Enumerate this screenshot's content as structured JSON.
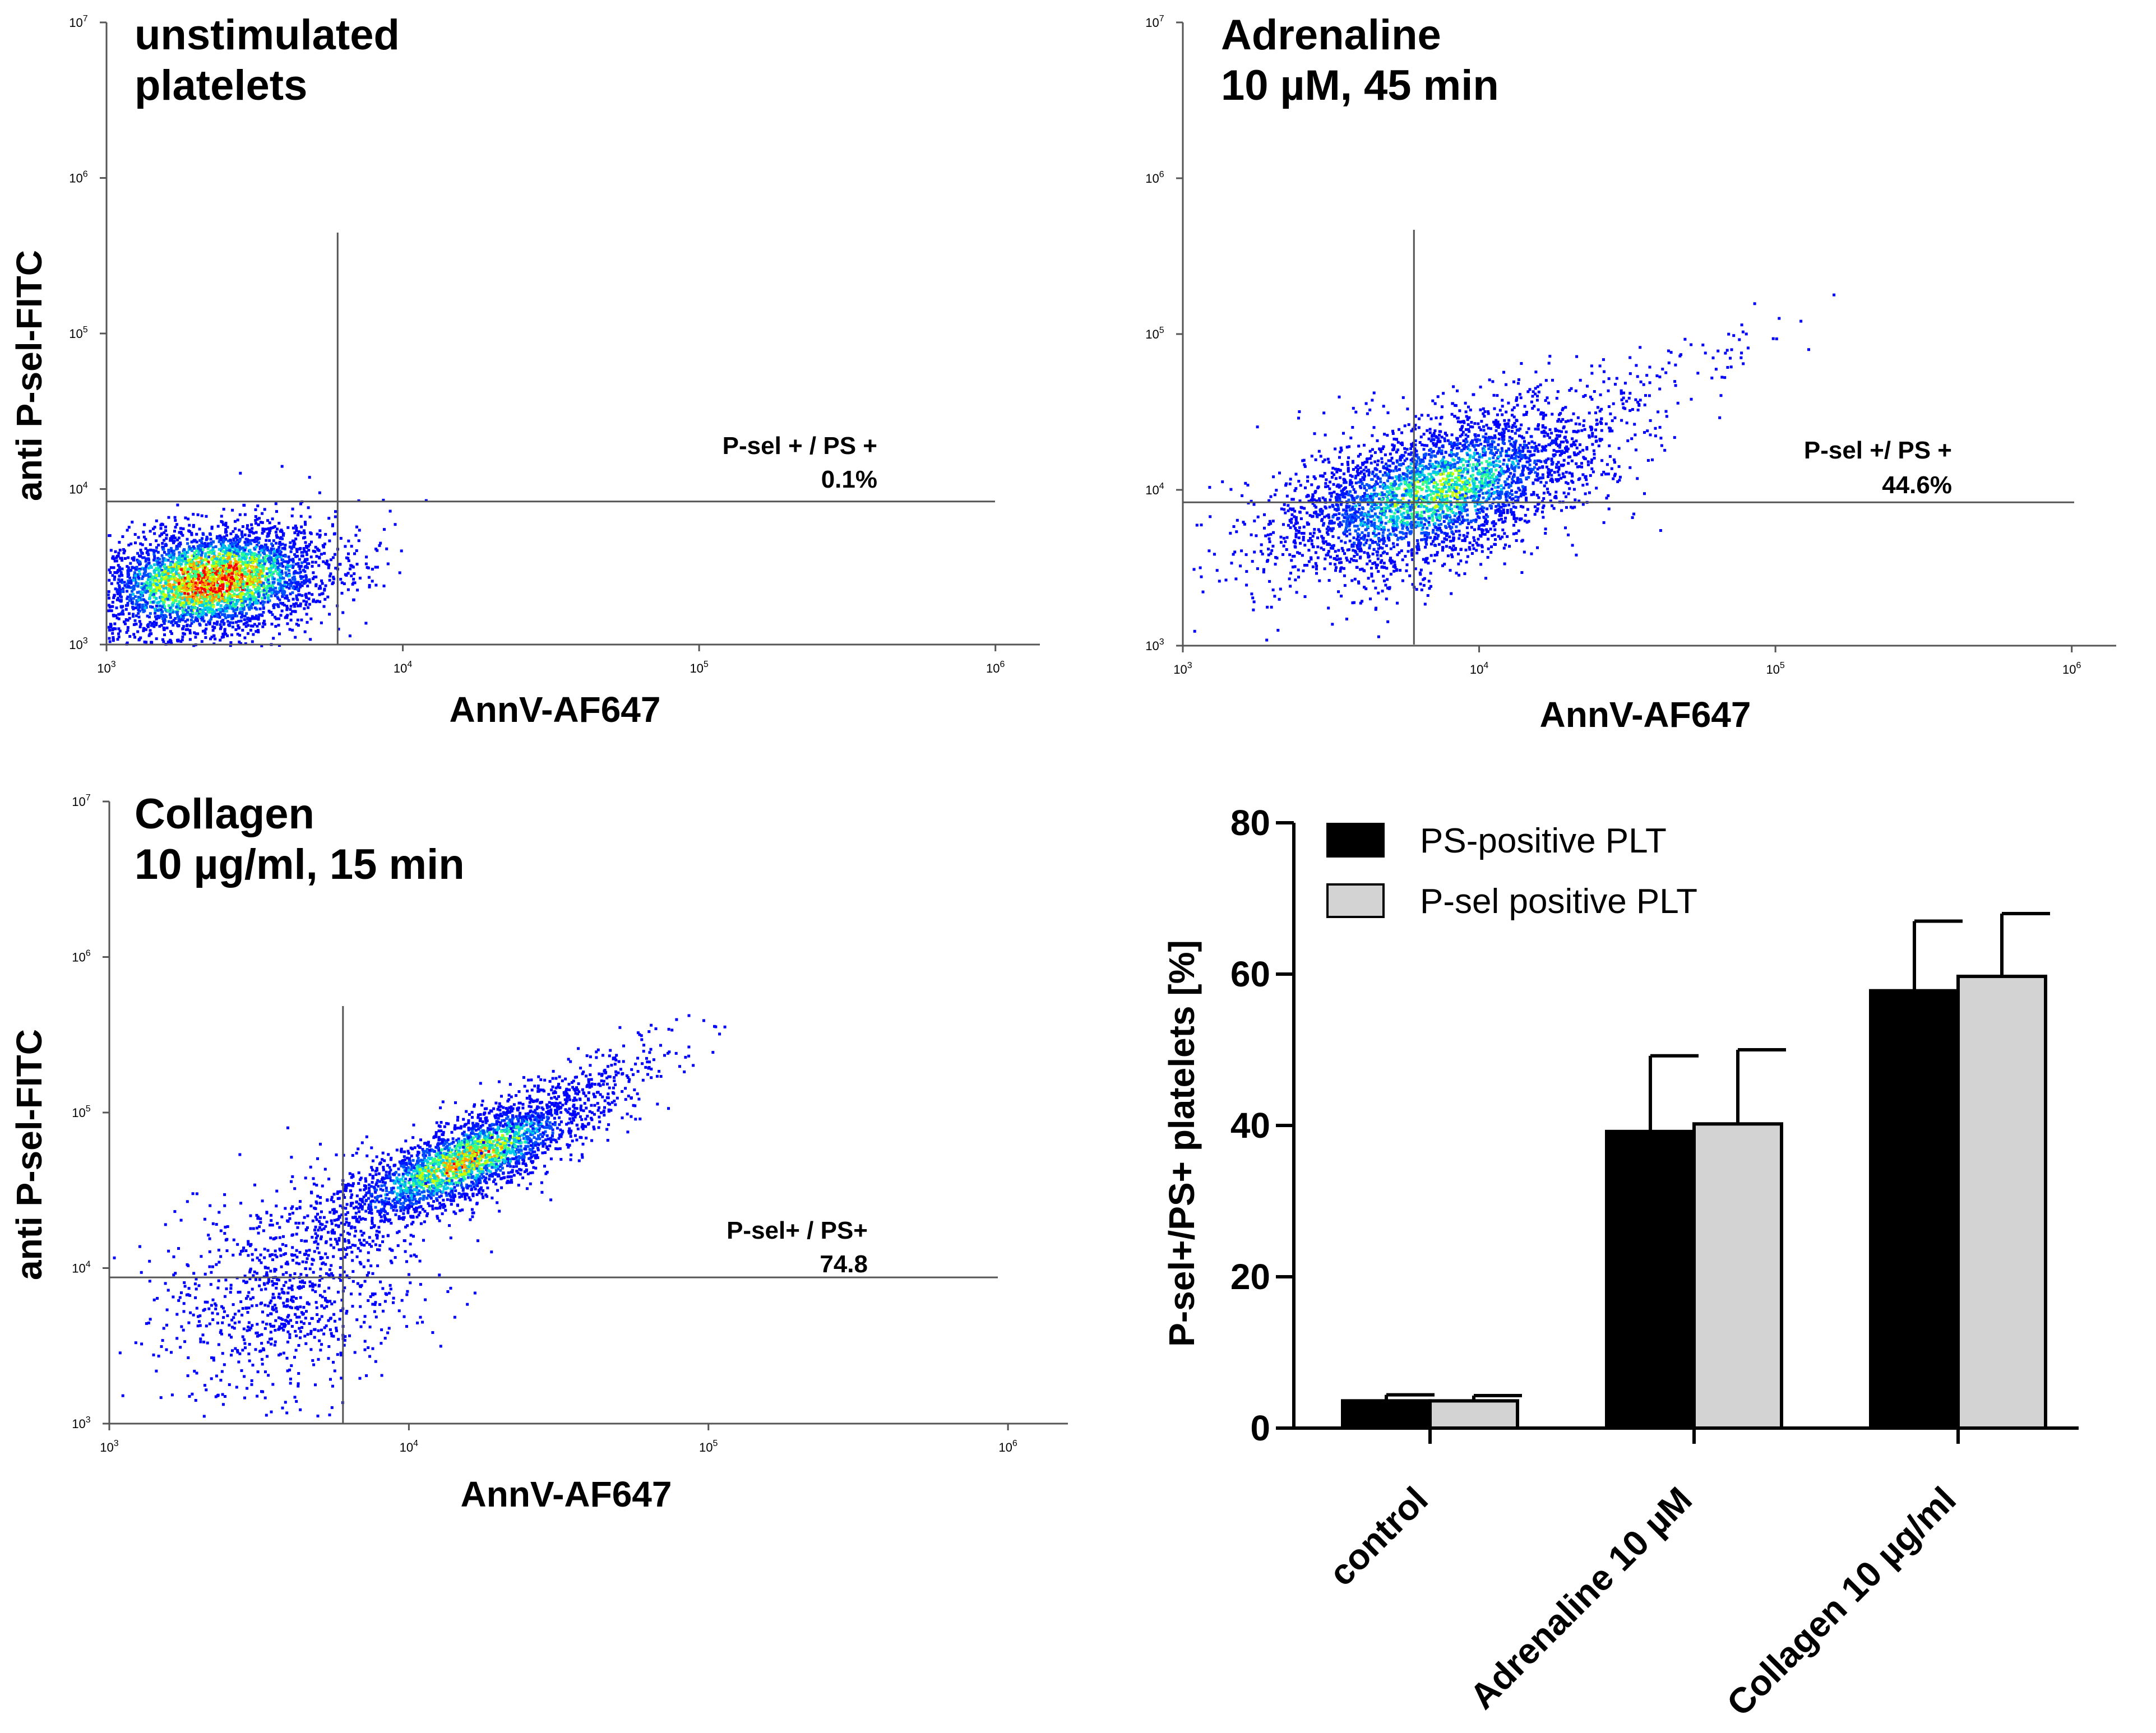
{
  "chart_data": [
    {
      "type": "scatter",
      "title": [
        "unstimulated",
        "platelets"
      ],
      "xlabel": "AnnV-AF647",
      "ylabel": "anti P-sel-FITC",
      "x_ticks": [
        {
          "base": "10",
          "exp": "3"
        },
        {
          "base": "10",
          "exp": "4"
        },
        {
          "base": "10",
          "exp": "5"
        },
        {
          "base": "10",
          "exp": "6"
        }
      ],
      "y_ticks": [
        {
          "base": "10",
          "exp": "3"
        },
        {
          "base": "10",
          "exp": "4"
        },
        {
          "base": "10",
          "exp": "5"
        },
        {
          "base": "10",
          "exp": "6"
        },
        {
          "base": "10",
          "exp": "7"
        }
      ],
      "xlim_log10": [
        3,
        6.15
      ],
      "ylim_log10": [
        3,
        7
      ],
      "gate_log10": {
        "x": 3.78,
        "y": 3.92
      },
      "gate_annotation": [
        "P-sel + / PS +",
        "0.1%"
      ],
      "populations": [
        {
          "cx": 3.35,
          "cy": 3.42,
          "sx": 0.2,
          "sy": 0.18,
          "rho": 0.2,
          "n": 3600,
          "core": 0.9
        }
      ]
    },
    {
      "type": "scatter",
      "title": [
        "Adrenaline",
        "10 µM, 45 min"
      ],
      "xlabel": "AnnV-AF647",
      "ylabel": "",
      "x_ticks": [
        {
          "base": "10",
          "exp": "3"
        },
        {
          "base": "10",
          "exp": "4"
        },
        {
          "base": "10",
          "exp": "5"
        },
        {
          "base": "10",
          "exp": "6"
        }
      ],
      "y_ticks": [
        {
          "base": "10",
          "exp": "3"
        },
        {
          "base": "10",
          "exp": "4"
        },
        {
          "base": "10",
          "exp": "5"
        },
        {
          "base": "10",
          "exp": "6"
        },
        {
          "base": "10",
          "exp": "7"
        }
      ],
      "xlim_log10": [
        3,
        6.15
      ],
      "ylim_log10": [
        3,
        7
      ],
      "gate_log10": {
        "x": 3.78,
        "y": 3.92
      },
      "gate_annotation": [
        "P-sel +/ PS +",
        "44.6%"
      ],
      "populations": [
        {
          "cx": 3.85,
          "cy": 4.0,
          "sx": 0.28,
          "sy": 0.28,
          "rho": 0.55,
          "n": 3400,
          "core": 0.6
        },
        {
          "cx": 4.55,
          "cy": 4.6,
          "sx": 0.28,
          "sy": 0.3,
          "rho": 0.9,
          "n": 140,
          "core": 0
        }
      ]
    },
    {
      "type": "scatter",
      "title": [
        "Collagen",
        "10 µg/ml, 15 min"
      ],
      "xlabel": "AnnV-AF647",
      "ylabel": "anti P-sel-FITC",
      "x_ticks": [
        {
          "base": "10",
          "exp": "3"
        },
        {
          "base": "10",
          "exp": "4"
        },
        {
          "base": "10",
          "exp": "5"
        },
        {
          "base": "10",
          "exp": "6"
        }
      ],
      "y_ticks": [
        {
          "base": "10",
          "exp": "3"
        },
        {
          "base": "10",
          "exp": "4"
        },
        {
          "base": "10",
          "exp": "5"
        },
        {
          "base": "10",
          "exp": "6"
        },
        {
          "base": "10",
          "exp": "7"
        }
      ],
      "xlim_log10": [
        3,
        6.2
      ],
      "ylim_log10": [
        3,
        7
      ],
      "gate_log10": {
        "x": 3.78,
        "y": 3.94
      },
      "gate_annotation": [
        "P-sel+ / PS+",
        "74.8"
      ],
      "populations": [
        {
          "cx": 4.18,
          "cy": 4.7,
          "sx": 0.22,
          "sy": 0.22,
          "rho": 0.8,
          "n": 2600,
          "core": 0.75
        },
        {
          "cx": 3.6,
          "cy": 3.85,
          "sx": 0.22,
          "sy": 0.35,
          "rho": 0.3,
          "n": 900,
          "core": 0
        },
        {
          "cx": 4.6,
          "cy": 5.2,
          "sx": 0.22,
          "sy": 0.22,
          "rho": 0.85,
          "n": 200,
          "core": 0
        }
      ]
    },
    {
      "type": "bar",
      "title": "",
      "ylabel": "P-sel+/PS+ platelets [%]",
      "xlabel": "",
      "categories": [
        "control",
        "Adrenaline 10 µM",
        "Collagen 10 µg/ml"
      ],
      "ylim": [
        0,
        80
      ],
      "yticks": [
        0,
        20,
        40,
        60,
        80
      ],
      "legend_position": "top-left",
      "series": [
        {
          "name": "PS-positive PLT",
          "color": "#000000",
          "values": [
            3.6,
            39.2,
            57.8
          ],
          "errors": [
            0.8,
            10.0,
            9.2
          ]
        },
        {
          "name": "P-sel positive PLT",
          "color": "#d3d3d3",
          "values": [
            3.6,
            40.2,
            59.7
          ],
          "errors": [
            0.7,
            9.8,
            8.3
          ]
        }
      ]
    }
  ]
}
